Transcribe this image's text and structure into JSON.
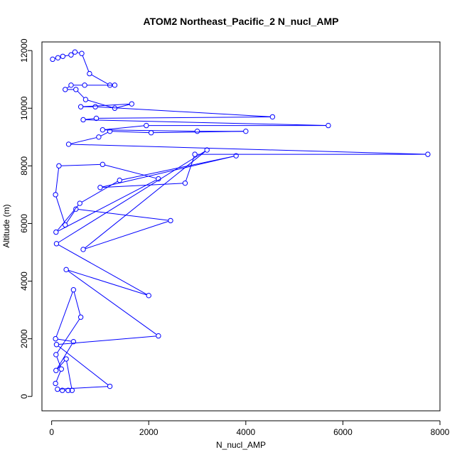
{
  "chart_data": {
    "type": "line",
    "title": "ATOM2 Northeast_Pacific_2 N_nucl_AMP",
    "xlabel": "N_nucl_AMP",
    "ylabel": "Altitude (m)",
    "xlim": [
      -200,
      8000
    ],
    "ylim": [
      -500,
      12300
    ],
    "xticks": [
      0,
      2000,
      4000,
      6000,
      8000
    ],
    "yticks": [
      0,
      2000,
      4000,
      6000,
      8000,
      10000,
      12000
    ],
    "color": "#0000ff",
    "marker": "open-circle",
    "grid": false,
    "series": [
      {
        "points": [
          [
            20,
            11700
          ],
          [
            130,
            11750
          ],
          [
            230,
            11800
          ],
          [
            400,
            11850
          ],
          [
            480,
            11950
          ],
          [
            620,
            11900
          ],
          [
            780,
            11200
          ],
          [
            1200,
            10800
          ],
          [
            1300,
            10800
          ],
          [
            680,
            10800
          ],
          [
            400,
            10800
          ],
          [
            280,
            10650
          ],
          [
            500,
            10650
          ],
          [
            700,
            10300
          ],
          [
            1300,
            10000
          ],
          [
            1650,
            10150
          ],
          [
            600,
            10050
          ],
          [
            900,
            10050
          ],
          [
            4550,
            9700
          ],
          [
            920,
            9650
          ],
          [
            650,
            9600
          ],
          [
            5700,
            9400
          ],
          [
            1950,
            9400
          ],
          [
            1050,
            9250
          ],
          [
            3000,
            9200
          ],
          [
            4000,
            9200
          ],
          [
            2050,
            9150
          ],
          [
            1200,
            9200
          ],
          [
            970,
            9000
          ],
          [
            350,
            8750
          ],
          [
            7750,
            8400
          ],
          [
            2950,
            8400
          ],
          [
            2750,
            7400
          ],
          [
            1000,
            7250
          ],
          [
            3800,
            8350
          ],
          [
            1400,
            7500
          ],
          [
            580,
            6700
          ],
          [
            90,
            5700
          ],
          [
            2200,
            7550
          ],
          [
            1050,
            8050
          ],
          [
            150,
            8000
          ],
          [
            80,
            7000
          ],
          [
            280,
            5950
          ],
          [
            500,
            6500
          ],
          [
            2450,
            6100
          ],
          [
            650,
            5100
          ],
          [
            3200,
            8550
          ],
          [
            100,
            5300
          ],
          [
            2000,
            3500
          ],
          [
            300,
            4400
          ],
          [
            2200,
            2100
          ],
          [
            100,
            1800
          ],
          [
            1200,
            350
          ],
          [
            120,
            250
          ],
          [
            220,
            210
          ],
          [
            340,
            210
          ],
          [
            420,
            210
          ],
          [
            300,
            1300
          ],
          [
            90,
            900
          ],
          [
            450,
            1900
          ],
          [
            80,
            2000
          ],
          [
            450,
            3700
          ],
          [
            600,
            2750
          ],
          [
            90,
            1450
          ],
          [
            200,
            950
          ],
          [
            80,
            450
          ]
        ]
      }
    ]
  }
}
